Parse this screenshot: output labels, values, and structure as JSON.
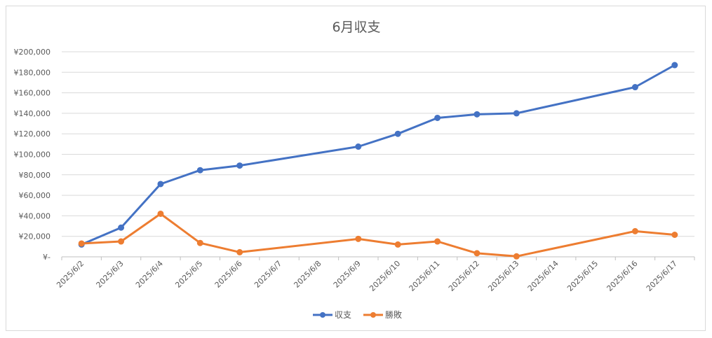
{
  "chart_data": {
    "type": "line",
    "title": "6月収支",
    "xlabel": "",
    "ylabel": "",
    "categories": [
      "2025/6/2",
      "2025/6/3",
      "2025/6/4",
      "2025/6/5",
      "2025/6/6",
      "2025/6/7",
      "2025/6/8",
      "2025/6/9",
      "2025/6/10",
      "2025/6/11",
      "2025/6/12",
      "2025/6/13",
      "2025/6/14",
      "2025/6/15",
      "2025/6/16",
      "2025/6/17"
    ],
    "ylim": [
      0,
      200000
    ],
    "y_ticks": [
      {
        "value": 0,
        "label": "¥-"
      },
      {
        "value": 20000,
        "label": "¥20,000"
      },
      {
        "value": 40000,
        "label": "¥40,000"
      },
      {
        "value": 60000,
        "label": "¥60,000"
      },
      {
        "value": 80000,
        "label": "¥80,000"
      },
      {
        "value": 100000,
        "label": "¥100,000"
      },
      {
        "value": 120000,
        "label": "¥120,000"
      },
      {
        "value": 140000,
        "label": "¥140,000"
      },
      {
        "value": 160000,
        "label": "¥160,000"
      },
      {
        "value": 180000,
        "label": "¥180,000"
      },
      {
        "value": 200000,
        "label": "¥200,000"
      }
    ],
    "grid": true,
    "legend_position": "bottom",
    "series": [
      {
        "name": "収支",
        "color": "#4472c4",
        "points": [
          {
            "x": "2025/6/2",
            "y": 12000
          },
          {
            "x": "2025/6/3",
            "y": 28500
          },
          {
            "x": "2025/6/4",
            "y": 71000
          },
          {
            "x": "2025/6/5",
            "y": 84500
          },
          {
            "x": "2025/6/6",
            "y": 89000
          },
          {
            "x": "2025/6/9",
            "y": 107500
          },
          {
            "x": "2025/6/10",
            "y": 120000
          },
          {
            "x": "2025/6/11",
            "y": 135500
          },
          {
            "x": "2025/6/12",
            "y": 139000
          },
          {
            "x": "2025/6/13",
            "y": 140000
          },
          {
            "x": "2025/6/16",
            "y": 165500
          },
          {
            "x": "2025/6/17",
            "y": 187000
          }
        ]
      },
      {
        "name": "勝敗",
        "color": "#ed7d31",
        "points": [
          {
            "x": "2025/6/2",
            "y": 13000
          },
          {
            "x": "2025/6/3",
            "y": 15000
          },
          {
            "x": "2025/6/4",
            "y": 42000
          },
          {
            "x": "2025/6/5",
            "y": 13500
          },
          {
            "x": "2025/6/6",
            "y": 4500
          },
          {
            "x": "2025/6/9",
            "y": 17500
          },
          {
            "x": "2025/6/10",
            "y": 12000
          },
          {
            "x": "2025/6/11",
            "y": 15000
          },
          {
            "x": "2025/6/12",
            "y": 3500
          },
          {
            "x": "2025/6/13",
            "y": 500
          },
          {
            "x": "2025/6/16",
            "y": 25000
          },
          {
            "x": "2025/6/17",
            "y": 21500
          }
        ]
      }
    ]
  }
}
